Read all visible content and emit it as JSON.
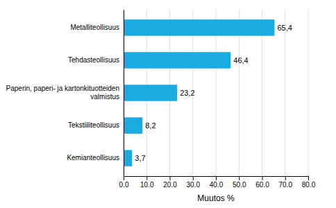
{
  "chart_data": {
    "type": "bar",
    "orientation": "horizontal",
    "categories": [
      "Kemianteollisuus",
      "Tekstiiliteollisuus",
      "Paperin, paperi- ja kartonkituotteiden valmistus",
      "Tehdasteollisuus",
      "Metalliteollisuus"
    ],
    "values": [
      3.7,
      8.2,
      23.2,
      46.4,
      65.4
    ],
    "value_labels": [
      "3,7",
      "8,2",
      "23,2",
      "46,4",
      "65,4"
    ],
    "data_labels": true,
    "color": "#1aace0",
    "x_label": "Muutos %",
    "xlim": [
      0,
      80
    ],
    "xticks": [
      {
        "value": 0.0,
        "label": "0.0"
      },
      {
        "value": 10.0,
        "label": "10.0"
      },
      {
        "value": 20.0,
        "label": "20.0"
      },
      {
        "value": 30.0,
        "label": "30.0"
      },
      {
        "value": 40.0,
        "label": "40.0"
      },
      {
        "value": 50.0,
        "label": "50.0"
      },
      {
        "value": 60.0,
        "label": "60.0"
      },
      {
        "value": 70.0,
        "label": "70.0"
      },
      {
        "value": 80.0,
        "label": "80.0"
      }
    ],
    "grid": true
  }
}
